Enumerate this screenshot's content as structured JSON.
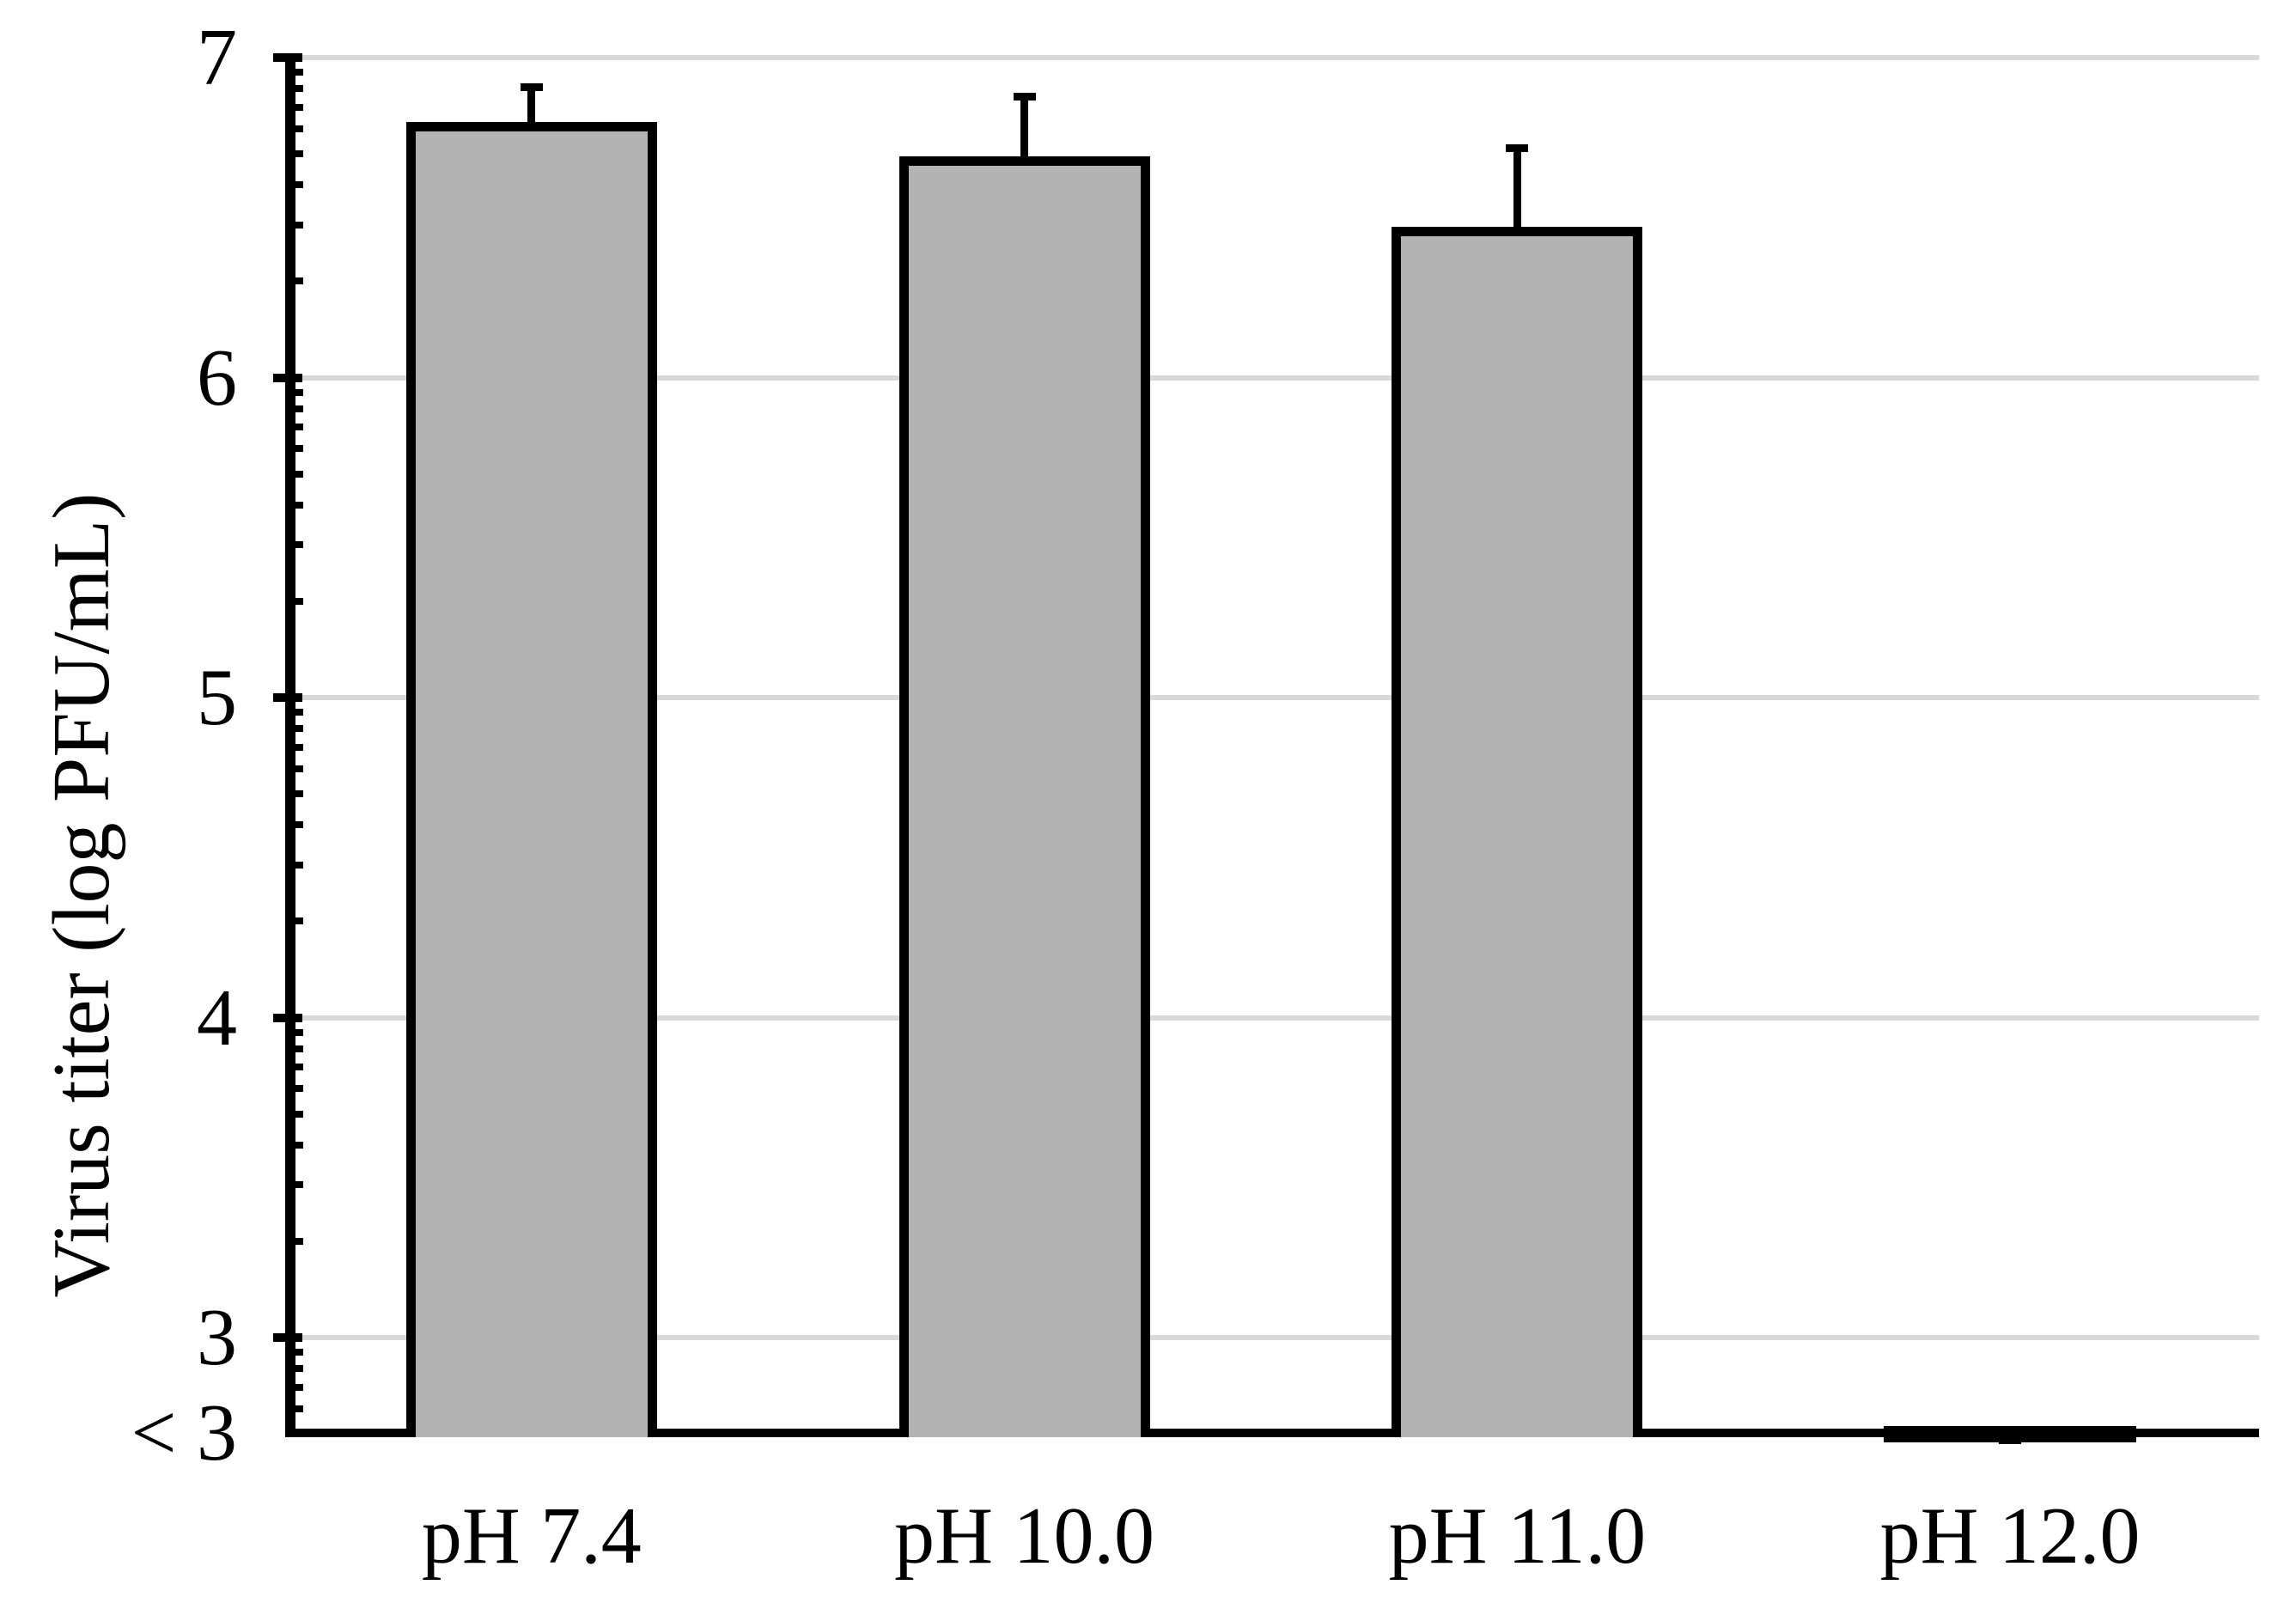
{
  "chart_data": {
    "type": "bar",
    "title": "",
    "categories": [
      "pH 7.4",
      "pH 10.0",
      "pH 11.0",
      "pH 12.0"
    ],
    "values": [
      6.8,
      6.69,
      6.47,
      null
    ],
    "below_detection": [
      false,
      false,
      false,
      true
    ],
    "error_whisker_top": [
      6.92,
      6.89,
      6.73,
      null
    ],
    "ylabel": "Virus titer (log PFU/mL)",
    "xlabel": "",
    "y_axis": {
      "top_value": 7,
      "major_tick_values": [
        7,
        6,
        5,
        4,
        3
      ],
      "major_tick_labels": [
        "7",
        "6",
        "5",
        "4",
        "3"
      ],
      "baseline_label": "< 3",
      "baseline_value": 2.7,
      "minor_ticks": "log10-subdivisions",
      "gridlines": "horizontal-major"
    },
    "legend": null,
    "colors": {
      "bar_fill": "#b3b3b3",
      "bar_border": "#000000",
      "gridline": "#d9d9d9",
      "axis": "#000000",
      "text": "#000000",
      "background": "#ffffff"
    }
  }
}
